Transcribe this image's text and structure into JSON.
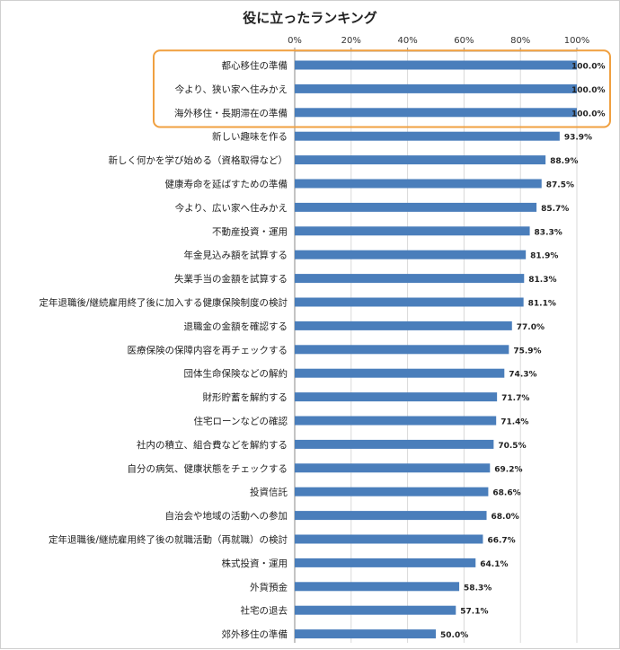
{
  "chart_data": {
    "type": "bar",
    "orientation": "horizontal",
    "title": "役に立ったランキング",
    "xlim": [
      0,
      100
    ],
    "x_ticks": [
      "0%",
      "20%",
      "40%",
      "60%",
      "80%",
      "100%"
    ],
    "x_axis_position": "top",
    "grid": true,
    "bar_color": "#4a7ebb",
    "highlight_color": "#f0a040",
    "highlighted_categories": [
      "都心移住の準備",
      "今より、狭い家へ住みかえ",
      "海外移住・長期滞在の準備"
    ],
    "categories": [
      "都心移住の準備",
      "今より、狭い家へ住みかえ",
      "海外移住・長期滞在の準備",
      "新しい趣味を作る",
      "新しく何かを学び始める（資格取得など）",
      "健康寿命を延ばすための準備",
      "今より、広い家へ住みかえ",
      "不動産投資・運用",
      "年金見込み額を試算する",
      "失業手当の金額を試算する",
      "定年退職後/継続雇用終了後に加入する健康保険制度の検討",
      "退職金の金額を確認する",
      "医療保険の保障内容を再チェックする",
      "団体生命保険などの解約",
      "財形貯蓄を解約する",
      "住宅ローンなどの確認",
      "社内の積立、組合費などを解約する",
      "自分の病気、健康状態をチェックする",
      "投資信託",
      "自治会や地域の活動への参加",
      "定年退職後/継続雇用終了後の就職活動（再就職）の検討",
      "株式投資・運用",
      "外貨預金",
      "社宅の退去",
      "郊外移住の準備"
    ],
    "values": [
      100.0,
      100.0,
      100.0,
      93.9,
      88.9,
      87.5,
      85.7,
      83.3,
      81.9,
      81.3,
      81.1,
      77.0,
      75.9,
      74.3,
      71.7,
      71.4,
      70.5,
      69.2,
      68.6,
      68.0,
      66.7,
      64.1,
      58.3,
      57.1,
      50.0
    ],
    "value_labels": [
      "100.0%",
      "100.0%",
      "100.0%",
      "93.9%",
      "88.9%",
      "87.5%",
      "85.7%",
      "83.3%",
      "81.9%",
      "81.3%",
      "81.1%",
      "77.0%",
      "75.9%",
      "74.3%",
      "71.7%",
      "71.4%",
      "70.5%",
      "69.2%",
      "68.6%",
      "68.0%",
      "66.7%",
      "64.1%",
      "58.3%",
      "57.1%",
      "50.0%"
    ]
  }
}
